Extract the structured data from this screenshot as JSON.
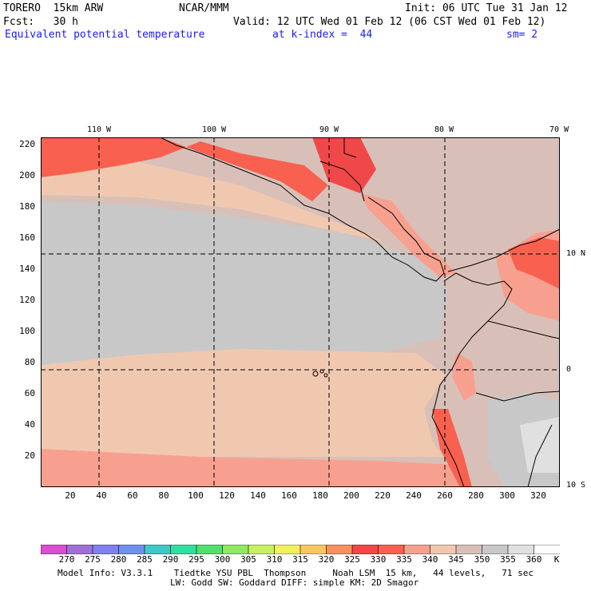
{
  "header": {
    "model": "TORERO  15km ARW",
    "center": "NCAR/MMM",
    "init": "Init: 06 UTC Tue 31 Jan 12",
    "fcst": "Fcst:   30 h",
    "valid": "Valid: 12 UTC Wed 01 Feb 12 (06 CST Wed 01 Feb 12)",
    "field": "Equivalent potential temperature",
    "level": "at k-index =  44",
    "smooth": "sm= 2"
  },
  "axes": {
    "y_ticks": [
      "220",
      "200",
      "180",
      "160",
      "140",
      "120",
      "100",
      "80",
      "60",
      "40",
      "20"
    ],
    "x_ticks": [
      "20",
      "40",
      "60",
      "80",
      "100",
      "120",
      "140",
      "160",
      "180",
      "200",
      "220",
      "240",
      "260",
      "280",
      "300",
      "320"
    ],
    "lon_labels": [
      "110 W",
      "100 W",
      "90 W",
      "80 W",
      "70 W"
    ],
    "lat_labels": [
      "10 N",
      "0",
      "10 S"
    ]
  },
  "colorbar": {
    "ticks": [
      "270",
      "275",
      "280",
      "285",
      "290",
      "295",
      "300",
      "305",
      "310",
      "315",
      "320",
      "325",
      "330",
      "335",
      "340",
      "345",
      "350",
      "355",
      "360"
    ],
    "unit": "K",
    "colors": [
      "#d850d0",
      "#a070d8",
      "#8080f0",
      "#7090f0",
      "#40c8c8",
      "#30e0a0",
      "#50e070",
      "#90e860",
      "#c8f060",
      "#f0f060",
      "#f8c860",
      "#f89060",
      "#f04848",
      "#f86050",
      "#f8a090",
      "#f0c8b0",
      "#d8c0b8",
      "#c8c8c8",
      "#e0e0e0",
      "#ffffff"
    ]
  },
  "legend_colors": {
    "warm_325": "#f04848",
    "warm_330": "#f86050",
    "w_335": "#f8a090",
    "w_340": "#f0c8b0",
    "w_345": "#d8c0b8",
    "w_350": "#c8c8c8",
    "coast": "#000000"
  },
  "footer": {
    "line1": "Model Info: V3.3.1    Tiedtke YSU PBL  Thompson     Noah LSM  15 km,   44 levels,   71 sec",
    "line2": "LW: Godd SW: Goddard DIFF: simple KM: 2D Smagor"
  }
}
